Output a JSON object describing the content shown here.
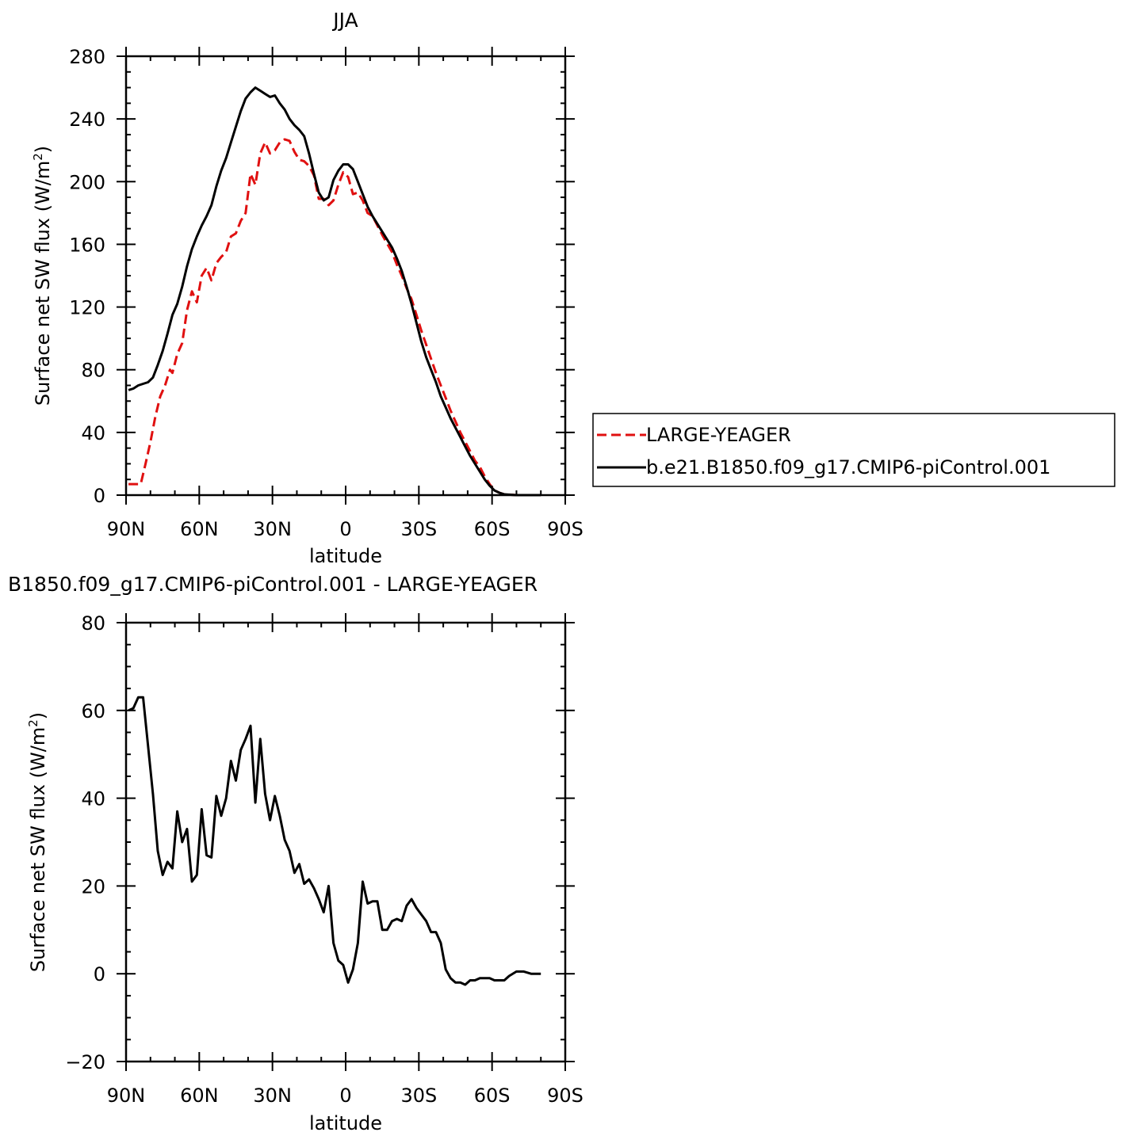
{
  "chart_data": [
    {
      "type": "line",
      "title": "JJA",
      "xlabel": "latitude",
      "ylabel": "Surface net SW flux (W/m",
      "ylabel_sup": "2",
      "ylabel_close": ")",
      "xlim": [
        90,
        -90
      ],
      "ylim": [
        0,
        280
      ],
      "xticks": [
        90,
        60,
        30,
        0,
        -30,
        -60,
        -90
      ],
      "xtick_labels": [
        "90N",
        "60N",
        "30N",
        "0",
        "30S",
        "60S",
        "90S"
      ],
      "yticks": [
        0,
        40,
        80,
        120,
        160,
        200,
        240,
        280
      ],
      "ytick_labels": [
        "0",
        "40",
        "80",
        "120",
        "160",
        "200",
        "240",
        "280"
      ],
      "grid": false,
      "legend_position": "right",
      "series": [
        {
          "name": "LARGE-YEAGER",
          "color": "#e01010",
          "style": "dashed",
          "points": [
            [
              89,
              7
            ],
            [
              86,
              7
            ],
            [
              84,
              7
            ],
            [
              82,
              20
            ],
            [
              80,
              34
            ],
            [
              78,
              50
            ],
            [
              76,
              63
            ],
            [
              74,
              70
            ],
            [
              72,
              80
            ],
            [
              71,
              78
            ],
            [
              69,
              90
            ],
            [
              67,
              97
            ],
            [
              65,
              118
            ],
            [
              63,
              130
            ],
            [
              61,
              123
            ],
            [
              59,
              140
            ],
            [
              57,
              145
            ],
            [
              55,
              137
            ],
            [
              53,
              148
            ],
            [
              51,
              152
            ],
            [
              49,
              155
            ],
            [
              47,
              165
            ],
            [
              45,
              167
            ],
            [
              43,
              175
            ],
            [
              41,
              180
            ],
            [
              39,
              205
            ],
            [
              37,
              198
            ],
            [
              35,
              218
            ],
            [
              33,
              225
            ],
            [
              31,
              218
            ],
            [
              29,
              220
            ],
            [
              27,
              225
            ],
            [
              25,
              227
            ],
            [
              23,
              226
            ],
            [
              21,
              219
            ],
            [
              19,
              214
            ],
            [
              17,
              213
            ],
            [
              15,
              210
            ],
            [
              13,
              204
            ],
            [
              11,
              189
            ],
            [
              9,
              189
            ],
            [
              7,
              185
            ],
            [
              5,
              188
            ],
            [
              3,
              198
            ],
            [
              1,
              206
            ],
            [
              -1,
              203
            ],
            [
              -3,
              192
            ],
            [
              -5,
              193
            ],
            [
              -7,
              188
            ],
            [
              -9,
              180
            ],
            [
              -11,
              178
            ],
            [
              -15,
              166
            ],
            [
              -19,
              155
            ],
            [
              -21,
              147
            ],
            [
              -23,
              140
            ],
            [
              -25,
              132
            ],
            [
              -27,
              125
            ],
            [
              -29,
              115
            ],
            [
              -31,
              105
            ],
            [
              -33,
              96
            ],
            [
              -35,
              87
            ],
            [
              -37,
              78
            ],
            [
              -39,
              70
            ],
            [
              -41,
              62
            ],
            [
              -43,
              54
            ],
            [
              -45,
              47
            ],
            [
              -47,
              40
            ],
            [
              -49,
              34
            ],
            [
              -51,
              28
            ],
            [
              -53,
              22
            ],
            [
              -55,
              18
            ],
            [
              -57,
              12
            ],
            [
              -59,
              7
            ],
            [
              -61,
              3
            ],
            [
              -63,
              1.5
            ],
            [
              -65,
              0.5
            ],
            [
              -70,
              0
            ],
            [
              -80,
              0
            ]
          ]
        },
        {
          "name": "b.e21.B1850.f09_g17.CMIP6-piControl.001",
          "color": "#000000",
          "style": "solid",
          "points": [
            [
              89,
              67
            ],
            [
              87,
              68
            ],
            [
              85,
              70
            ],
            [
              83,
              71
            ],
            [
              81,
              72
            ],
            [
              79,
              75
            ],
            [
              77,
              83
            ],
            [
              75,
              92
            ],
            [
              73,
              103
            ],
            [
              71,
              115
            ],
            [
              69,
              122
            ],
            [
              67,
              133
            ],
            [
              65,
              146
            ],
            [
              63,
              157
            ],
            [
              61,
              165
            ],
            [
              59,
              172
            ],
            [
              57,
              178
            ],
            [
              55,
              185
            ],
            [
              53,
              197
            ],
            [
              51,
              207
            ],
            [
              49,
              215
            ],
            [
              47,
              225
            ],
            [
              45,
              235
            ],
            [
              43,
              245
            ],
            [
              41,
              253
            ],
            [
              39,
              257
            ],
            [
              37,
              260
            ],
            [
              35,
              258
            ],
            [
              33,
              256
            ],
            [
              31,
              254
            ],
            [
              29,
              255
            ],
            [
              27,
              250
            ],
            [
              25,
              246
            ],
            [
              23,
              240
            ],
            [
              21,
              236
            ],
            [
              19,
              233
            ],
            [
              17,
              229
            ],
            [
              15,
              218
            ],
            [
              13,
              205
            ],
            [
              11,
              193
            ],
            [
              9,
              188
            ],
            [
              7,
              190
            ],
            [
              5,
              201
            ],
            [
              3,
              207
            ],
            [
              1,
              211
            ],
            [
              -1,
              211
            ],
            [
              -3,
              208
            ],
            [
              -5,
              200
            ],
            [
              -7,
              192
            ],
            [
              -9,
              184
            ],
            [
              -11,
              178
            ],
            [
              -15,
              168
            ],
            [
              -19,
              158
            ],
            [
              -21,
              151
            ],
            [
              -23,
              143
            ],
            [
              -25,
              133
            ],
            [
              -27,
              122
            ],
            [
              -29,
              110
            ],
            [
              -31,
              98
            ],
            [
              -33,
              88
            ],
            [
              -35,
              80
            ],
            [
              -37,
              72
            ],
            [
              -39,
              63
            ],
            [
              -41,
              56
            ],
            [
              -43,
              49
            ],
            [
              -45,
              43
            ],
            [
              -47,
              37
            ],
            [
              -49,
              31
            ],
            [
              -51,
              25
            ],
            [
              -53,
              20
            ],
            [
              -55,
              15
            ],
            [
              -57,
              10
            ],
            [
              -59,
              6
            ],
            [
              -61,
              3
            ],
            [
              -63,
              1.5
            ],
            [
              -65,
              0.5
            ],
            [
              -70,
              0
            ],
            [
              -80,
              0
            ]
          ]
        }
      ]
    },
    {
      "type": "line",
      "title": "B1850.f09_g17.CMIP6-piControl.001 - LARGE-YEAGER",
      "xlabel": "latitude",
      "ylabel": "Surface net SW flux (W/m",
      "ylabel_sup": "2",
      "ylabel_close": ")",
      "xlim": [
        90,
        -90
      ],
      "ylim": [
        -20,
        80
      ],
      "xticks": [
        90,
        60,
        30,
        0,
        -30,
        -60,
        -90
      ],
      "xtick_labels": [
        "90N",
        "60N",
        "30N",
        "0",
        "30S",
        "60S",
        "90S"
      ],
      "yticks": [
        -20,
        0,
        20,
        40,
        60,
        80
      ],
      "ytick_labels": [
        "−20",
        "0",
        "20",
        "40",
        "60",
        "80"
      ],
      "grid": false,
      "series": [
        {
          "color": "#000000",
          "style": "solid",
          "points": [
            [
              89,
              60
            ],
            [
              87,
              60.5
            ],
            [
              85,
              63
            ],
            [
              83,
              63
            ],
            [
              81,
              52
            ],
            [
              79,
              41
            ],
            [
              77,
              28
            ],
            [
              75,
              22.5
            ],
            [
              73,
              25.5
            ],
            [
              71,
              24
            ],
            [
              69,
              37
            ],
            [
              67,
              30
            ],
            [
              65,
              33
            ],
            [
              63,
              21
            ],
            [
              61,
              22.5
            ],
            [
              59,
              37.5
            ],
            [
              57,
              27
            ],
            [
              55,
              26.5
            ],
            [
              53,
              40.5
            ],
            [
              51,
              36
            ],
            [
              49,
              40
            ],
            [
              47,
              48.5
            ],
            [
              45,
              44
            ],
            [
              43,
              51
            ],
            [
              41,
              53.5
            ],
            [
              39,
              56.5
            ],
            [
              37,
              39
            ],
            [
              35,
              53.5
            ],
            [
              33,
              41
            ],
            [
              31,
              35
            ],
            [
              29,
              40.5
            ],
            [
              27,
              36
            ],
            [
              25,
              30.5
            ],
            [
              23,
              28
            ],
            [
              21,
              23
            ],
            [
              19,
              25
            ],
            [
              17,
              20.5
            ],
            [
              15,
              21.5
            ],
            [
              13,
              19.5
            ],
            [
              11,
              17
            ],
            [
              9,
              14
            ],
            [
              7,
              20
            ],
            [
              5,
              7
            ],
            [
              3,
              3
            ],
            [
              1,
              2
            ],
            [
              -1,
              -2
            ],
            [
              -3,
              1
            ],
            [
              -5,
              7
            ],
            [
              -7,
              21
            ],
            [
              -9,
              16
            ],
            [
              -11,
              16.5
            ],
            [
              -13,
              16.5
            ],
            [
              -15,
              10
            ],
            [
              -17,
              10
            ],
            [
              -19,
              12
            ],
            [
              -21,
              12.5
            ],
            [
              -23,
              12
            ],
            [
              -25,
              15.5
            ],
            [
              -27,
              17
            ],
            [
              -29,
              15
            ],
            [
              -31,
              13.5
            ],
            [
              -33,
              12
            ],
            [
              -35,
              9.5
            ],
            [
              -37,
              9.5
            ],
            [
              -39,
              7
            ],
            [
              -41,
              1
            ],
            [
              -43,
              -1
            ],
            [
              -45,
              -2
            ],
            [
              -47,
              -2
            ],
            [
              -49,
              -2.5
            ],
            [
              -51,
              -1.5
            ],
            [
              -53,
              -1.5
            ],
            [
              -55,
              -1
            ],
            [
              -57,
              -1
            ],
            [
              -59,
              -1
            ],
            [
              -61,
              -1.5
            ],
            [
              -63,
              -1.5
            ],
            [
              -65,
              -1.5
            ],
            [
              -67,
              -0.5
            ],
            [
              -70,
              0.5
            ],
            [
              -73,
              0.5
            ],
            [
              -76,
              0
            ],
            [
              -80,
              0
            ]
          ]
        }
      ]
    }
  ]
}
